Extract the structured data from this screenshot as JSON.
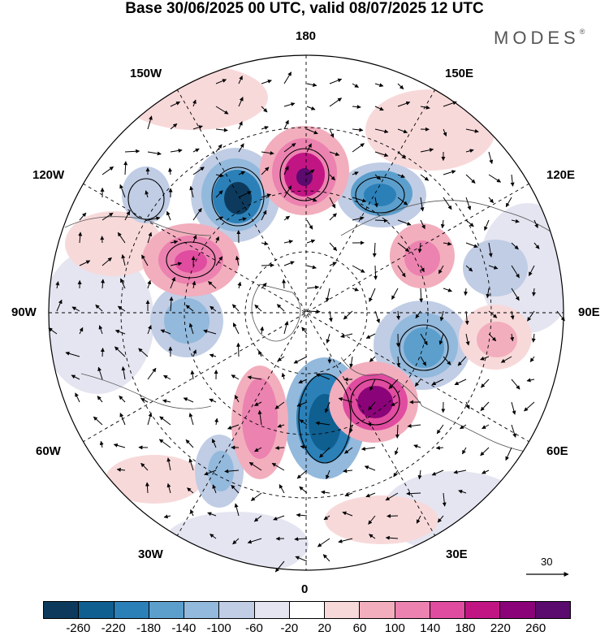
{
  "title": "Base 30/06/2025 00 UTC, valid 08/07/2025 12 UTC",
  "brand": "MODES",
  "brand_mark": "®",
  "longitudes": {
    "top": "180",
    "bottom": "0",
    "left": "90W",
    "right": "90E",
    "upper_left_1": "150W",
    "upper_left_2": "120W",
    "upper_right_1": "150E",
    "upper_right_2": "120E",
    "lower_left_1": "60W",
    "lower_left_2": "30W",
    "lower_right_1": "60E",
    "lower_right_2": "30E"
  },
  "reference_vector": "30",
  "colorbar": {
    "ticks": [
      "-260",
      "-220",
      "-180",
      "-140",
      "-100",
      "-60",
      "-20",
      "20",
      "60",
      "100",
      "140",
      "180",
      "220",
      "260"
    ],
    "colors": [
      "#0d3a5c",
      "#0f5f90",
      "#2b80b8",
      "#5c9fcd",
      "#93b9dc",
      "#c0cde5",
      "#e4e5f1",
      "#ffffff",
      "#f8d9da",
      "#f2aebd",
      "#ec82b0",
      "#e04c9f",
      "#c21584",
      "#8a0378",
      "#5b0a6e"
    ]
  }
}
